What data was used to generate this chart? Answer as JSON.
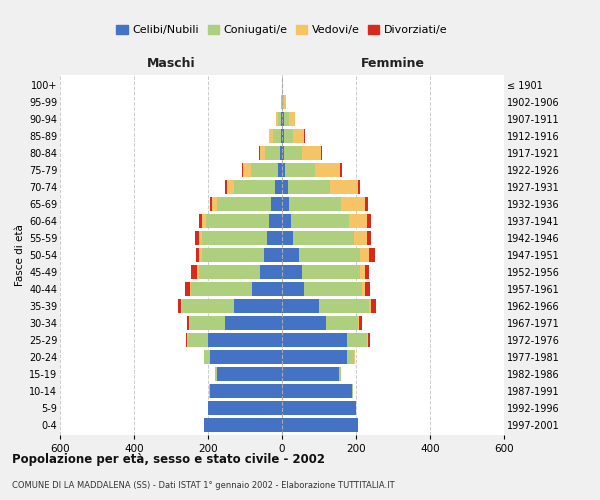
{
  "age_groups": [
    "0-4",
    "5-9",
    "10-14",
    "15-19",
    "20-24",
    "25-29",
    "30-34",
    "35-39",
    "40-44",
    "45-49",
    "50-54",
    "55-59",
    "60-64",
    "65-69",
    "70-74",
    "75-79",
    "80-84",
    "85-89",
    "90-94",
    "95-99",
    "100+"
  ],
  "birth_years": [
    "1997-2001",
    "1992-1996",
    "1987-1991",
    "1982-1986",
    "1977-1981",
    "1972-1976",
    "1967-1971",
    "1962-1966",
    "1957-1961",
    "1952-1956",
    "1947-1951",
    "1942-1946",
    "1937-1941",
    "1932-1936",
    "1927-1931",
    "1922-1926",
    "1917-1921",
    "1912-1916",
    "1907-1911",
    "1902-1906",
    "≤ 1901"
  ],
  "males": {
    "celibe": [
      210,
      200,
      195,
      175,
      195,
      200,
      155,
      130,
      80,
      60,
      50,
      40,
      35,
      30,
      20,
      10,
      5,
      4,
      2,
      0,
      0
    ],
    "coniugato": [
      1,
      1,
      2,
      5,
      15,
      55,
      95,
      140,
      165,
      165,
      165,
      175,
      170,
      145,
      110,
      75,
      40,
      20,
      8,
      2,
      0
    ],
    "vedovo": [
      0,
      0,
      0,
      0,
      0,
      1,
      1,
      2,
      3,
      5,
      8,
      10,
      10,
      15,
      20,
      20,
      15,
      10,
      5,
      0,
      0
    ],
    "divorziato": [
      0,
      0,
      0,
      0,
      1,
      3,
      5,
      10,
      15,
      15,
      10,
      10,
      8,
      5,
      5,
      2,
      1,
      0,
      0,
      0,
      0
    ]
  },
  "females": {
    "nubile": [
      205,
      200,
      190,
      155,
      175,
      175,
      120,
      100,
      60,
      55,
      45,
      30,
      25,
      20,
      15,
      8,
      5,
      5,
      5,
      1,
      0
    ],
    "coniugata": [
      1,
      1,
      2,
      5,
      20,
      55,
      85,
      135,
      155,
      155,
      165,
      165,
      155,
      140,
      115,
      80,
      50,
      25,
      15,
      5,
      0
    ],
    "vedova": [
      0,
      0,
      0,
      0,
      1,
      2,
      3,
      5,
      8,
      15,
      25,
      35,
      50,
      65,
      75,
      70,
      50,
      30,
      15,
      5,
      0
    ],
    "divorziata": [
      0,
      0,
      0,
      0,
      2,
      5,
      8,
      15,
      15,
      10,
      15,
      10,
      10,
      8,
      5,
      5,
      2,
      1,
      0,
      0,
      0
    ]
  },
  "colors": {
    "celibe": "#4472C4",
    "coniugato": "#AECF7E",
    "vedovo": "#F4C466",
    "divorziato": "#D9291C"
  },
  "xlim": 600,
  "title": "Popolazione per età, sesso e stato civile - 2002",
  "subtitle": "COMUNE DI LA MADDALENA (SS) - Dati ISTAT 1° gennaio 2002 - Elaborazione TUTTITALIA.IT",
  "xlabel_left": "Maschi",
  "xlabel_right": "Femmine",
  "ylabel_left": "Fasce di età",
  "legend_labels": [
    "Celibi/Nubili",
    "Coniugati/e",
    "Vedovi/e",
    "Divorziati/e"
  ],
  "background_color": "#f0f0f0",
  "plot_bg_color": "#ffffff"
}
